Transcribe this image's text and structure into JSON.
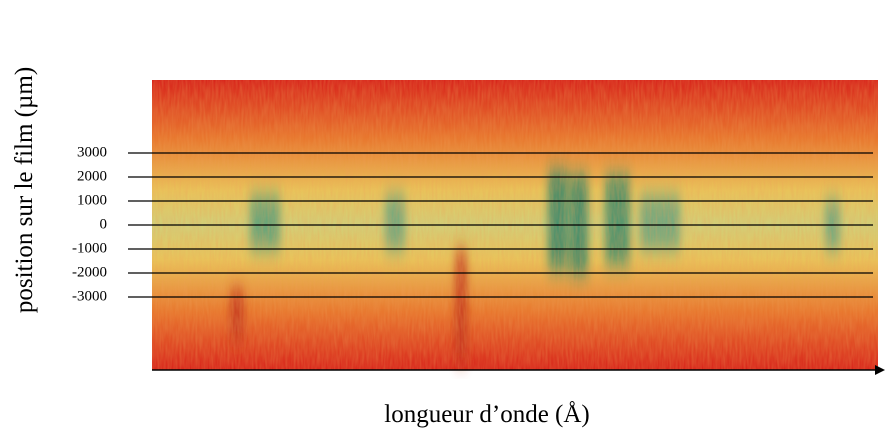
{
  "chart_data": {
    "type": "image",
    "xlabel": "longueur d’onde (Å)",
    "ylabel": "position sur le film (µm)",
    "ylim": [
      -6040,
      6040
    ],
    "yticks": [
      3000,
      2000,
      1000,
      0,
      -1000,
      -2000,
      -3000
    ],
    "grid": true
  }
}
